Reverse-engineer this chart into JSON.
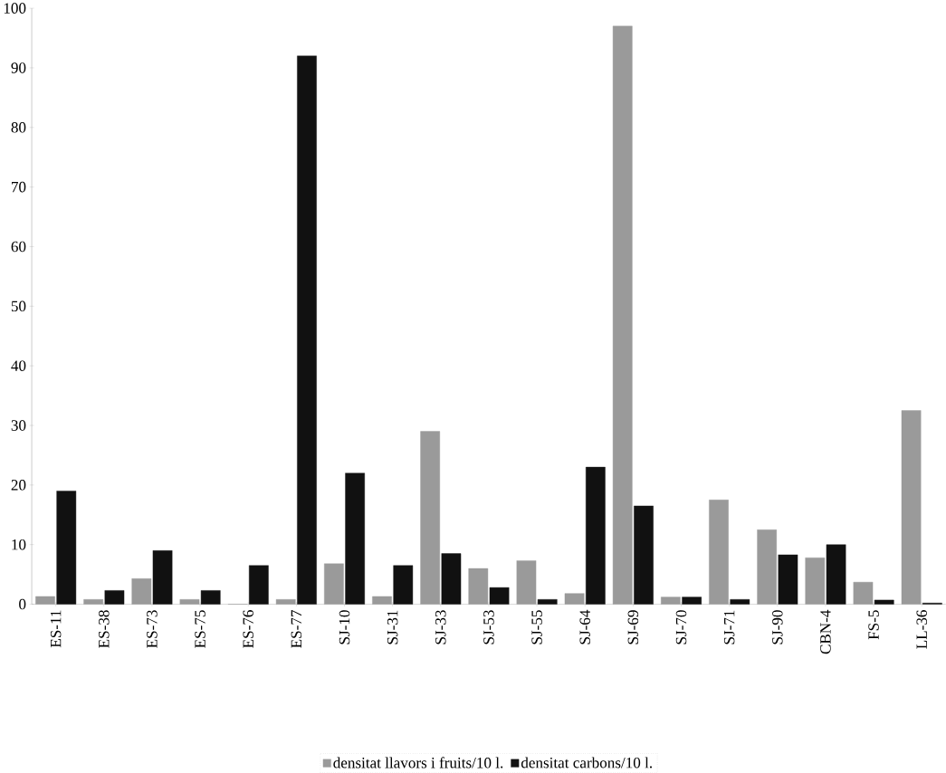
{
  "chart_data": {
    "type": "bar",
    "categories": [
      "ES-11",
      "ES-38",
      "ES-73",
      "ES-75",
      "ES-76",
      "ES-77",
      "SJ-10",
      "SJ-31",
      "SJ-33",
      "SJ-53",
      "SJ-55",
      "SJ-64",
      "SJ-69",
      "SJ-70",
      "SJ-71",
      "SJ-90",
      "CBN-4",
      "FS-5",
      "LL-36"
    ],
    "series": [
      {
        "name": "densitat llavors i fruits/10 l.",
        "color": "#9a9a9a",
        "values": [
          1.3,
          0.8,
          4.3,
          0.8,
          0,
          0.8,
          6.8,
          1.3,
          29,
          6,
          7.3,
          1.8,
          97,
          1.2,
          17.5,
          12.5,
          7.8,
          3.7,
          32.5
        ]
      },
      {
        "name": "densitat carbons/10 l.",
        "color": "#111111",
        "values": [
          19,
          2.3,
          9,
          2.3,
          6.5,
          92,
          22,
          6.5,
          8.5,
          2.8,
          0.8,
          23,
          16.5,
          1.2,
          0.8,
          8.3,
          10,
          0.7,
          0.2
        ]
      }
    ],
    "ylim": [
      0,
      100
    ],
    "yticks": [
      0,
      10,
      20,
      30,
      40,
      50,
      60,
      70,
      80,
      90,
      100
    ],
    "grid": false,
    "legend": "bottom"
  }
}
